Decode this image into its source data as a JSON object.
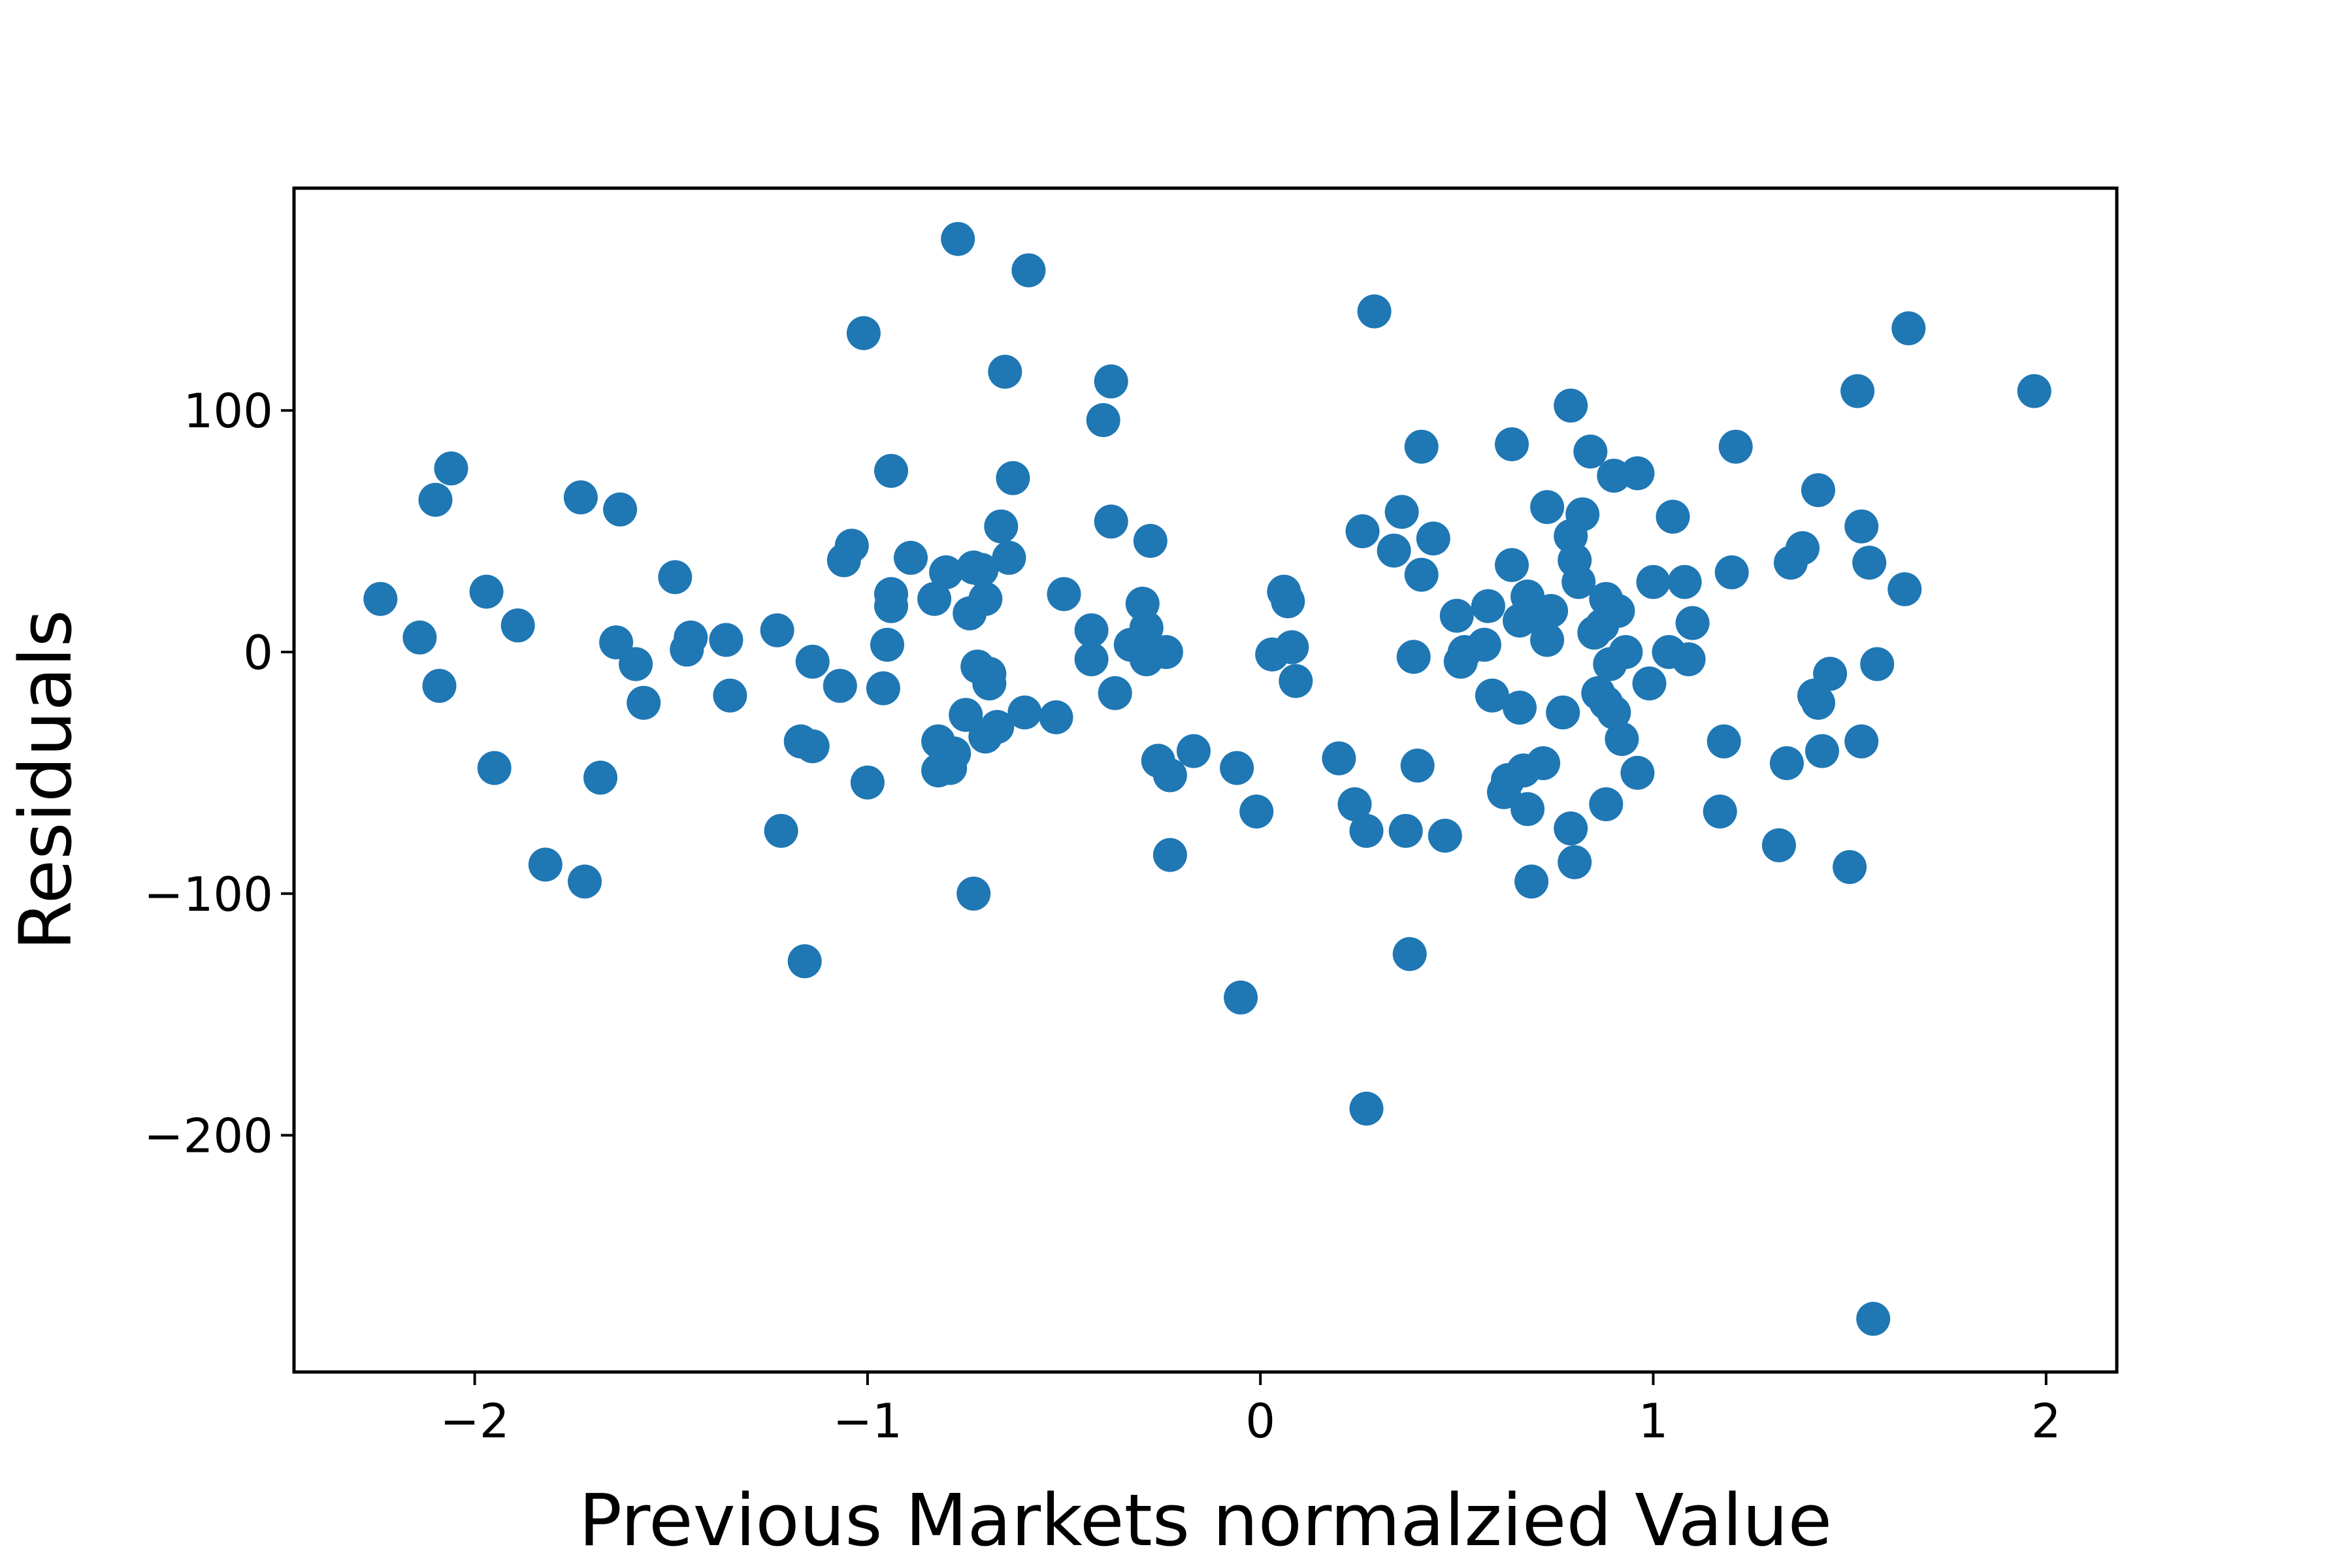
{
  "chart_data": {
    "type": "scatter",
    "title": "",
    "xlabel": "Previous Markets normalzied Value",
    "ylabel": "Residuals",
    "xlim": [
      -2.46,
      2.18
    ],
    "ylim": [
      -298,
      192
    ],
    "xticks": [
      -2,
      -1,
      0,
      1,
      2
    ],
    "xtick_labels": [
      "−2",
      "−1",
      "0",
      "1",
      "2"
    ],
    "yticks": [
      -200,
      -100,
      0,
      100
    ],
    "ytick_labels": [
      "−200",
      "−100",
      "0",
      "100"
    ],
    "grid": false,
    "color": "#1f77b4",
    "points": [
      [
        -2.24,
        22
      ],
      [
        -2.14,
        6
      ],
      [
        -2.1,
        63
      ],
      [
        -2.09,
        -14
      ],
      [
        -2.06,
        76
      ],
      [
        -1.97,
        25
      ],
      [
        -1.95,
        -48
      ],
      [
        -1.89,
        11
      ],
      [
        -1.82,
        -88
      ],
      [
        -1.73,
        64
      ],
      [
        -1.72,
        -95
      ],
      [
        -1.68,
        -52
      ],
      [
        -1.64,
        4
      ],
      [
        -1.63,
        59
      ],
      [
        -1.59,
        -5
      ],
      [
        -1.57,
        -21
      ],
      [
        -1.49,
        31
      ],
      [
        -1.46,
        1
      ],
      [
        -1.45,
        6
      ],
      [
        -1.36,
        5
      ],
      [
        -1.35,
        -18
      ],
      [
        -1.23,
        9
      ],
      [
        -1.22,
        -74
      ],
      [
        -1.17,
        -37
      ],
      [
        -1.16,
        -128
      ],
      [
        -1.14,
        -4
      ],
      [
        -1.14,
        -39
      ],
      [
        -1.07,
        -14
      ],
      [
        -1.06,
        38
      ],
      [
        -1.04,
        44
      ],
      [
        -1.01,
        132
      ],
      [
        -1.0,
        -54
      ],
      [
        -0.96,
        -15
      ],
      [
        -0.95,
        3
      ],
      [
        -0.94,
        75
      ],
      [
        -0.94,
        19
      ],
      [
        -0.94,
        24
      ],
      [
        -0.89,
        39
      ],
      [
        -0.83,
        22
      ],
      [
        -0.82,
        -37
      ],
      [
        -0.82,
        -49
      ],
      [
        -0.8,
        33
      ],
      [
        -0.79,
        -48
      ],
      [
        -0.78,
        -42
      ],
      [
        -0.77,
        171
      ],
      [
        -0.75,
        -26
      ],
      [
        -0.74,
        16
      ],
      [
        -0.73,
        35
      ],
      [
        -0.73,
        -100
      ],
      [
        -0.72,
        -6
      ],
      [
        -0.71,
        34
      ],
      [
        -0.7,
        -35
      ],
      [
        -0.7,
        22
      ],
      [
        -0.69,
        -13
      ],
      [
        -0.69,
        -9
      ],
      [
        -0.67,
        -31
      ],
      [
        -0.66,
        52
      ],
      [
        -0.65,
        116
      ],
      [
        -0.64,
        39
      ],
      [
        -0.63,
        72
      ],
      [
        -0.6,
        -25
      ],
      [
        -0.59,
        158
      ],
      [
        -0.52,
        -27
      ],
      [
        -0.5,
        24
      ],
      [
        -0.43,
        9
      ],
      [
        -0.43,
        -3
      ],
      [
        -0.4,
        96
      ],
      [
        -0.38,
        112
      ],
      [
        -0.38,
        54
      ],
      [
        -0.37,
        -17
      ],
      [
        -0.33,
        3
      ],
      [
        -0.3,
        20
      ],
      [
        -0.29,
        10
      ],
      [
        -0.29,
        -3
      ],
      [
        -0.28,
        46
      ],
      [
        -0.26,
        -45
      ],
      [
        -0.24,
        0
      ],
      [
        -0.23,
        -51
      ],
      [
        -0.23,
        -84
      ],
      [
        -0.17,
        -41
      ],
      [
        -0.06,
        -48
      ],
      [
        -0.05,
        -143
      ],
      [
        -0.01,
        -66
      ],
      [
        0.03,
        -1
      ],
      [
        0.06,
        25
      ],
      [
        0.07,
        21
      ],
      [
        0.08,
        2
      ],
      [
        0.09,
        -12
      ],
      [
        0.2,
        -44
      ],
      [
        0.24,
        -63
      ],
      [
        0.26,
        50
      ],
      [
        0.27,
        -74
      ],
      [
        0.27,
        -189
      ],
      [
        0.29,
        141
      ],
      [
        0.34,
        42
      ],
      [
        0.36,
        58
      ],
      [
        0.37,
        -74
      ],
      [
        0.38,
        -125
      ],
      [
        0.39,
        -2
      ],
      [
        0.4,
        -47
      ],
      [
        0.41,
        32
      ],
      [
        0.41,
        85
      ],
      [
        0.44,
        47
      ],
      [
        0.47,
        -76
      ],
      [
        0.5,
        15
      ],
      [
        0.51,
        -4
      ],
      [
        0.52,
        0
      ],
      [
        0.57,
        3
      ],
      [
        0.58,
        19
      ],
      [
        0.59,
        -18
      ],
      [
        0.62,
        -58
      ],
      [
        0.63,
        -53
      ],
      [
        0.64,
        36
      ],
      [
        0.64,
        86
      ],
      [
        0.66,
        -23
      ],
      [
        0.66,
        13
      ],
      [
        0.67,
        -49
      ],
      [
        0.68,
        -65
      ],
      [
        0.68,
        23
      ],
      [
        0.69,
        -95
      ],
      [
        0.71,
        14
      ],
      [
        0.72,
        -46
      ],
      [
        0.73,
        5
      ],
      [
        0.73,
        60
      ],
      [
        0.74,
        17
      ],
      [
        0.77,
        -25
      ],
      [
        0.79,
        -73
      ],
      [
        0.79,
        102
      ],
      [
        0.79,
        48
      ],
      [
        0.8,
        38
      ],
      [
        0.8,
        -87
      ],
      [
        0.81,
        29
      ],
      [
        0.82,
        57
      ],
      [
        0.84,
        83
      ],
      [
        0.85,
        8
      ],
      [
        0.86,
        -17
      ],
      [
        0.87,
        11
      ],
      [
        0.88,
        -63
      ],
      [
        0.88,
        22
      ],
      [
        0.88,
        -21
      ],
      [
        0.89,
        -5
      ],
      [
        0.9,
        73
      ],
      [
        0.9,
        -25
      ],
      [
        0.91,
        17
      ],
      [
        0.92,
        -36
      ],
      [
        0.93,
        0
      ],
      [
        0.96,
        -50
      ],
      [
        0.96,
        74
      ],
      [
        0.99,
        -13
      ],
      [
        1.0,
        29
      ],
      [
        1.04,
        0
      ],
      [
        1.05,
        56
      ],
      [
        1.08,
        29
      ],
      [
        1.09,
        -3
      ],
      [
        1.1,
        12
      ],
      [
        1.17,
        -66
      ],
      [
        1.18,
        -37
      ],
      [
        1.2,
        33
      ],
      [
        1.21,
        85
      ],
      [
        1.32,
        -80
      ],
      [
        1.34,
        -46
      ],
      [
        1.35,
        37
      ],
      [
        1.38,
        43
      ],
      [
        1.41,
        -18
      ],
      [
        1.42,
        67
      ],
      [
        1.42,
        -21
      ],
      [
        1.43,
        -41
      ],
      [
        1.45,
        -9
      ],
      [
        1.5,
        -89
      ],
      [
        1.52,
        108
      ],
      [
        1.53,
        52
      ],
      [
        1.53,
        -37
      ],
      [
        1.55,
        37
      ],
      [
        1.56,
        -276
      ],
      [
        1.57,
        -5
      ],
      [
        1.64,
        26
      ],
      [
        1.65,
        134
      ],
      [
        1.97,
        108
      ]
    ]
  }
}
